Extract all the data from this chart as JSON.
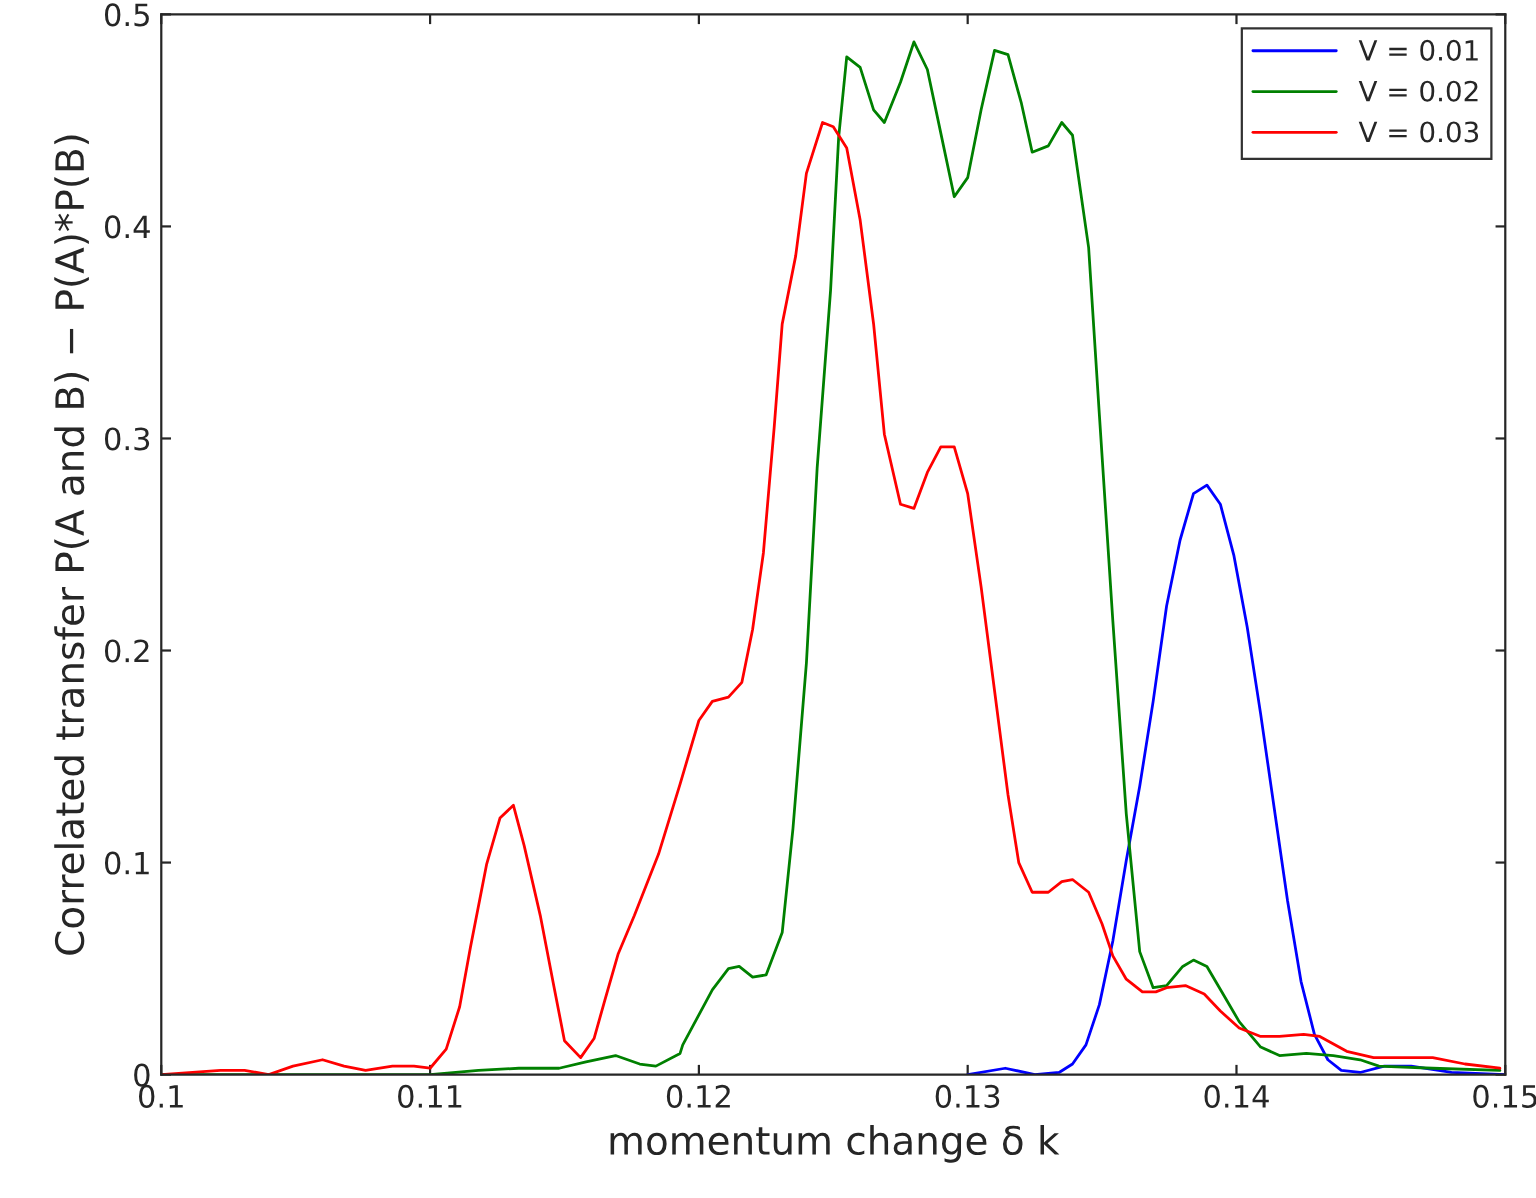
{
  "chart_data": {
    "type": "line",
    "xlabel": "momentum change δ k",
    "ylabel": "Correlated transfer P(A and B) − P(A)*P(B)",
    "xlim": [
      0.1,
      0.15
    ],
    "ylim": [
      0,
      0.5
    ],
    "xticks": [
      0.1,
      0.11,
      0.12,
      0.13,
      0.14,
      0.15
    ],
    "yticks": [
      0,
      0.1,
      0.2,
      0.3,
      0.4,
      0.5
    ],
    "grid": false,
    "legend": "top right",
    "marker": "none",
    "line_style": "solid",
    "series": [
      {
        "name": "V = 0.01",
        "color": "#0000ff",
        "x": [
          0.13,
          0.1314,
          0.1325,
          0.1334,
          0.1339,
          0.1344,
          0.1349,
          0.1354,
          0.1359,
          0.1364,
          0.1369,
          0.1374,
          0.1379,
          0.1384,
          0.1389,
          0.1394,
          0.1399,
          0.1404,
          0.1409,
          0.1414,
          0.1419,
          0.1424,
          0.1429,
          0.1434,
          0.1439,
          0.1446,
          0.1455,
          0.1465,
          0.148,
          0.15
        ],
        "values": [
          0,
          0.003,
          0,
          0.001,
          0.005,
          0.014,
          0.033,
          0.063,
          0.101,
          0.136,
          0.176,
          0.221,
          0.252,
          0.274,
          0.278,
          0.269,
          0.245,
          0.211,
          0.17,
          0.126,
          0.082,
          0.044,
          0.019,
          0.007,
          0.002,
          0.001,
          0.004,
          0.004,
          0.001,
          0
        ]
      },
      {
        "name": "V = 0.02",
        "color": "#008000",
        "x": [
          0.1,
          0.11,
          0.1118,
          0.1133,
          0.1148,
          0.1158,
          0.1169,
          0.1178,
          0.1184,
          0.1193,
          0.1194,
          0.1205,
          0.1211,
          0.1215,
          0.122,
          0.1225,
          0.1231,
          0.1235,
          0.124,
          0.1244,
          0.1249,
          0.1252,
          0.1255,
          0.126,
          0.1265,
          0.1269,
          0.1275,
          0.128,
          0.1285,
          0.129,
          0.1295,
          0.13,
          0.1305,
          0.131,
          0.1315,
          0.132,
          0.1324,
          0.133,
          0.1335,
          0.1339,
          0.1345,
          0.1349,
          0.1354,
          0.1359,
          0.1364,
          0.1369,
          0.1374,
          0.138,
          0.1384,
          0.1389,
          0.1395,
          0.1401,
          0.1409,
          0.1416,
          0.1426,
          0.1436,
          0.1446,
          0.1453,
          0.1473,
          0.1498
        ],
        "values": [
          0,
          0,
          0.002,
          0.003,
          0.003,
          0.006,
          0.009,
          0.005,
          0.004,
          0.01,
          0.014,
          0.04,
          0.05,
          0.051,
          0.046,
          0.047,
          0.067,
          0.116,
          0.194,
          0.286,
          0.37,
          0.442,
          0.48,
          0.475,
          0.455,
          0.449,
          0.468,
          0.487,
          0.474,
          0.444,
          0.414,
          0.423,
          0.455,
          0.483,
          0.481,
          0.458,
          0.435,
          0.438,
          0.449,
          0.443,
          0.39,
          0.311,
          0.214,
          0.123,
          0.058,
          0.041,
          0.042,
          0.051,
          0.054,
          0.051,
          0.038,
          0.025,
          0.013,
          0.009,
          0.01,
          0.009,
          0.007,
          0.004,
          0.003,
          0.002
        ]
      },
      {
        "name": "V = 0.03",
        "color": "#ff0000",
        "x": [
          0.1,
          0.1022,
          0.1031,
          0.104,
          0.1049,
          0.106,
          0.1068,
          0.1076,
          0.1086,
          0.1094,
          0.11,
          0.1106,
          0.1111,
          0.1115,
          0.1121,
          0.1126,
          0.1131,
          0.1135,
          0.1141,
          0.1146,
          0.115,
          0.1156,
          0.1161,
          0.1165,
          0.117,
          0.1176,
          0.1185,
          0.1193,
          0.12,
          0.1205,
          0.1211,
          0.1216,
          0.122,
          0.1224,
          0.1228,
          0.1231,
          0.1236,
          0.124,
          0.1246,
          0.125,
          0.1255,
          0.126,
          0.1265,
          0.1269,
          0.1275,
          0.128,
          0.1285,
          0.129,
          0.1295,
          0.13,
          0.1305,
          0.131,
          0.1315,
          0.1319,
          0.1324,
          0.133,
          0.1335,
          0.1339,
          0.1345,
          0.135,
          0.1354,
          0.1359,
          0.1365,
          0.137,
          0.1374,
          0.1381,
          0.1388,
          0.1394,
          0.1401,
          0.1409,
          0.1416,
          0.1425,
          0.1431,
          0.1441,
          0.1451,
          0.1461,
          0.1473,
          0.1485,
          0.1498
        ],
        "values": [
          0,
          0.002,
          0.002,
          0,
          0.004,
          0.007,
          0.004,
          0.002,
          0.004,
          0.004,
          0.003,
          0.012,
          0.032,
          0.06,
          0.099,
          0.121,
          0.127,
          0.108,
          0.075,
          0.042,
          0.016,
          0.008,
          0.017,
          0.035,
          0.057,
          0.075,
          0.104,
          0.137,
          0.167,
          0.176,
          0.178,
          0.185,
          0.21,
          0.246,
          0.305,
          0.354,
          0.386,
          0.425,
          0.449,
          0.447,
          0.437,
          0.403,
          0.354,
          0.302,
          0.269,
          0.267,
          0.284,
          0.296,
          0.296,
          0.274,
          0.23,
          0.181,
          0.132,
          0.1,
          0.086,
          0.086,
          0.091,
          0.092,
          0.086,
          0.071,
          0.056,
          0.045,
          0.039,
          0.039,
          0.041,
          0.042,
          0.038,
          0.03,
          0.022,
          0.018,
          0.018,
          0.019,
          0.018,
          0.011,
          0.008,
          0.008,
          0.008,
          0.005,
          0.003
        ]
      }
    ]
  }
}
